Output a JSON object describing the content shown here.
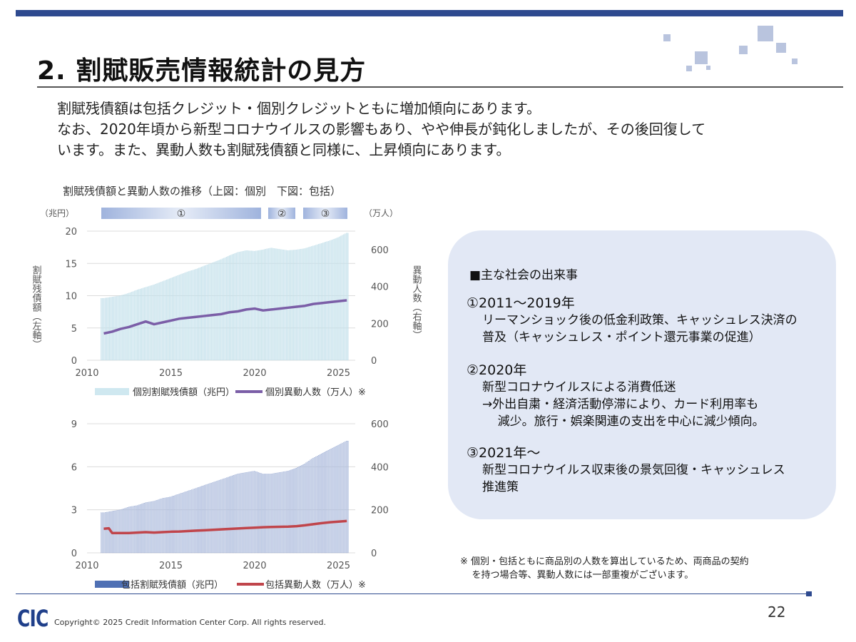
{
  "title": "2. 割賦販売情報統計の見方",
  "intro": [
    "割賦残債額は包括クレジット・個別クレジットともに増加傾向にあります。",
    "なお、2020年頃から新型コロナウイルスの影響もあり、やや伸長が鈍化しましたが、その後回復して",
    "います。また、異動人数も割賦残債額と同様に、上昇傾向にあります。"
  ],
  "chart_heading": "割賦残債額と異動人数の推移（上図：個別　下図：包括）",
  "period_markers": [
    "①",
    "②",
    "③"
  ],
  "colors": {
    "accent": "#2e4a8f",
    "individual_bar": "#cfe8f0",
    "individual_line": "#7b5ea7",
    "comprehensive_bar": "#7c94c8",
    "comprehensive_line": "#c0454b",
    "panel": "#e2e8f5"
  },
  "chart_data": [
    {
      "type": "bar+line",
      "left_unit": "（兆円）",
      "right_unit": "（万人）",
      "ylabel": "割賦残債額（左軸）",
      "y2label": "異動人数（右軸）",
      "ylim": [
        0,
        20
      ],
      "yticks": [
        0,
        5,
        10,
        15,
        20
      ],
      "y2lim": [
        0,
        700
      ],
      "y2ticks": [
        0,
        200,
        400,
        600
      ],
      "xlim": [
        2010,
        2026
      ],
      "xticks": [
        2010,
        2015,
        2020,
        2025
      ],
      "grid": true,
      "bar_series": {
        "name": "個別割賦残債額（兆円）",
        "x": [
          2011.0,
          2011.5,
          2012.0,
          2012.5,
          2013.0,
          2013.5,
          2014.0,
          2014.5,
          2015.0,
          2015.5,
          2016.0,
          2016.5,
          2017.0,
          2017.5,
          2018.0,
          2018.5,
          2019.0,
          2019.5,
          2020.0,
          2020.5,
          2021.0,
          2021.5,
          2022.0,
          2022.5,
          2023.0,
          2023.5,
          2024.0,
          2024.5,
          2025.0,
          2025.5
        ],
        "values": [
          9.6,
          9.8,
          10.0,
          10.4,
          10.9,
          11.3,
          11.7,
          12.2,
          12.7,
          13.2,
          13.7,
          14.1,
          14.6,
          15.1,
          15.6,
          16.2,
          16.7,
          17.0,
          16.9,
          17.1,
          17.4,
          17.2,
          17.0,
          17.1,
          17.3,
          17.7,
          18.1,
          18.5,
          19.0,
          19.7
        ]
      },
      "line_series": {
        "name": "個別異動人数（万人）※",
        "x": [
          2011.0,
          2011.5,
          2012.0,
          2012.5,
          2013.0,
          2013.5,
          2014.0,
          2014.5,
          2015.0,
          2015.5,
          2016.0,
          2016.5,
          2017.0,
          2017.5,
          2018.0,
          2018.5,
          2019.0,
          2019.5,
          2020.0,
          2020.5,
          2021.0,
          2021.5,
          2022.0,
          2022.5,
          2023.0,
          2023.5,
          2024.0,
          2024.5,
          2025.0,
          2025.5
        ],
        "values": [
          145,
          155,
          170,
          180,
          195,
          210,
          195,
          205,
          215,
          225,
          230,
          235,
          240,
          245,
          250,
          260,
          265,
          275,
          280,
          270,
          275,
          280,
          285,
          290,
          295,
          305,
          310,
          315,
          320,
          325
        ]
      }
    },
    {
      "type": "bar+line",
      "ylim": [
        0,
        9
      ],
      "yticks": [
        0,
        3,
        6,
        9
      ],
      "y2lim": [
        0,
        600
      ],
      "y2ticks": [
        0,
        200,
        400,
        600
      ],
      "xlim": [
        2010,
        2026
      ],
      "xticks": [
        2010,
        2015,
        2020,
        2025
      ],
      "grid": true,
      "bar_series": {
        "name": "包括割賦残債額（兆円）",
        "x": [
          2011.0,
          2011.5,
          2012.0,
          2012.5,
          2013.0,
          2013.5,
          2014.0,
          2014.5,
          2015.0,
          2015.5,
          2016.0,
          2016.5,
          2017.0,
          2017.5,
          2018.0,
          2018.5,
          2019.0,
          2019.5,
          2020.0,
          2020.5,
          2021.0,
          2021.5,
          2022.0,
          2022.5,
          2023.0,
          2023.5,
          2024.0,
          2024.5,
          2025.0,
          2025.5
        ],
        "values": [
          2.8,
          2.9,
          3.0,
          3.2,
          3.3,
          3.5,
          3.6,
          3.8,
          3.9,
          4.1,
          4.3,
          4.5,
          4.7,
          4.9,
          5.1,
          5.3,
          5.5,
          5.6,
          5.7,
          5.5,
          5.5,
          5.6,
          5.7,
          5.9,
          6.2,
          6.6,
          6.9,
          7.2,
          7.5,
          7.8
        ]
      },
      "line_series": {
        "name": "包括異動人数（万人）※",
        "x": [
          2011.0,
          2011.3,
          2011.5,
          2012.0,
          2012.5,
          2013.0,
          2013.5,
          2014.0,
          2014.5,
          2015.0,
          2015.5,
          2016.0,
          2016.5,
          2017.0,
          2017.5,
          2018.0,
          2018.5,
          2019.0,
          2019.5,
          2020.0,
          2020.5,
          2021.0,
          2021.5,
          2022.0,
          2022.5,
          2023.0,
          2023.5,
          2024.0,
          2024.5,
          2025.0,
          2025.5
        ],
        "values": [
          112,
          114,
          92,
          92,
          92,
          94,
          96,
          94,
          96,
          98,
          99,
          101,
          103,
          105,
          107,
          109,
          111,
          113,
          115,
          117,
          119,
          120,
          121,
          122,
          124,
          128,
          133,
          138,
          142,
          145,
          148
        ]
      }
    }
  ],
  "panel": {
    "title": "■主な社会の出来事",
    "events": [
      {
        "heading": "①2011～2019年",
        "lines": [
          "リーマンショック後の低金利政策、キャッシュレス決済の",
          "普及（キャッシュレス・ポイント還元事業の促進）"
        ]
      },
      {
        "heading": "②2020年",
        "lines": [
          "新型コロナウイルスによる消費低迷",
          "→外出自粛・経済活動停滞により、カード利用率も",
          "    減少。旅行・娯楽関連の支出を中心に減少傾向。"
        ]
      },
      {
        "heading": "③2021年～",
        "lines": [
          "新型コロナウイルス収束後の景気回復・キャッシュレス",
          "推進策"
        ]
      }
    ]
  },
  "footnote": [
    "※ 個別・包括ともに商品別の人数を算出しているため、両商品の契約",
    "    を持つ場合等、異動人数には一部重複がございます。"
  ],
  "footer": {
    "logo": "CIC",
    "copyright": "Copyright© 2025 Credit Information Center Corp. All rights reserved.",
    "page_number": "22"
  }
}
